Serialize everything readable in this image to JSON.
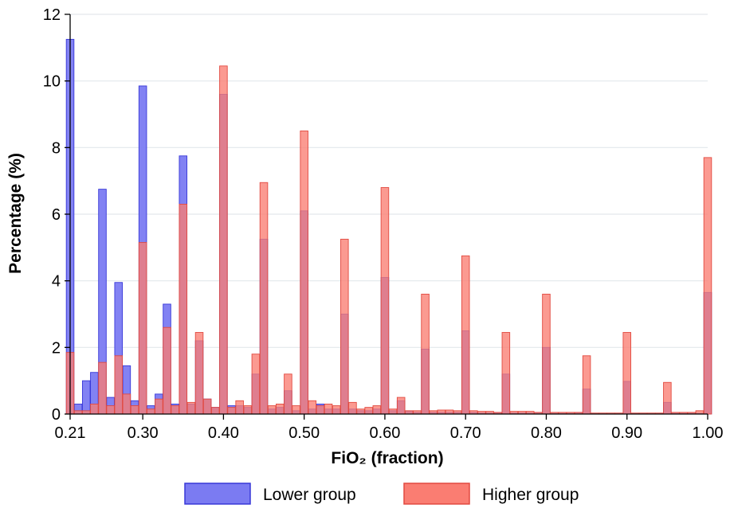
{
  "chart_data": {
    "type": "bar",
    "xlabel": "FiO₂ (fraction)",
    "ylabel": "Percentage (%)",
    "xlim": [
      0.21,
      1.0
    ],
    "ylim": [
      0,
      12
    ],
    "grid": true,
    "legend_position": "bottom",
    "x_ticks": [
      {
        "value": 0.21,
        "label": "0.21"
      },
      {
        "value": 0.3,
        "label": "0.30"
      },
      {
        "value": 0.4,
        "label": "0.40"
      },
      {
        "value": 0.5,
        "label": "0.50"
      },
      {
        "value": 0.6,
        "label": "0.60"
      },
      {
        "value": 0.7,
        "label": "0.70"
      },
      {
        "value": 0.8,
        "label": "0.80"
      },
      {
        "value": 0.9,
        "label": "0.90"
      },
      {
        "value": 1.0,
        "label": "1.00"
      }
    ],
    "y_ticks": [
      {
        "value": 0,
        "label": "0"
      },
      {
        "value": 2,
        "label": "2"
      },
      {
        "value": 4,
        "label": "4"
      },
      {
        "value": 6,
        "label": "6"
      },
      {
        "value": 8,
        "label": "8"
      },
      {
        "value": 10,
        "label": "10"
      },
      {
        "value": 12,
        "label": "12"
      }
    ],
    "x": [
      0.21,
      0.22,
      0.23,
      0.24,
      0.25,
      0.26,
      0.27,
      0.28,
      0.29,
      0.3,
      0.31,
      0.32,
      0.33,
      0.34,
      0.35,
      0.36,
      0.37,
      0.38,
      0.39,
      0.4,
      0.41,
      0.42,
      0.43,
      0.44,
      0.45,
      0.46,
      0.47,
      0.48,
      0.49,
      0.5,
      0.51,
      0.52,
      0.53,
      0.54,
      0.55,
      0.56,
      0.57,
      0.58,
      0.59,
      0.6,
      0.61,
      0.62,
      0.63,
      0.64,
      0.65,
      0.66,
      0.67,
      0.68,
      0.69,
      0.7,
      0.71,
      0.72,
      0.73,
      0.74,
      0.75,
      0.76,
      0.77,
      0.78,
      0.79,
      0.8,
      0.81,
      0.82,
      0.83,
      0.84,
      0.85,
      0.86,
      0.87,
      0.88,
      0.89,
      0.9,
      0.91,
      0.92,
      0.93,
      0.94,
      0.95,
      0.96,
      0.97,
      0.98,
      0.99,
      1.0
    ],
    "series": [
      {
        "name": "Lower group",
        "color": "#7b7bf2",
        "values": [
          11.25,
          0.3,
          1.0,
          1.25,
          6.75,
          0.5,
          3.95,
          1.45,
          0.4,
          9.85,
          0.25,
          0.6,
          3.3,
          0.3,
          7.75,
          0.3,
          2.2,
          0.45,
          0.2,
          9.6,
          0.25,
          0.25,
          0.2,
          1.2,
          5.25,
          0.15,
          0.2,
          0.7,
          0.1,
          6.1,
          0.15,
          0.3,
          0.15,
          0.15,
          3.0,
          0.15,
          0.1,
          0.1,
          0.15,
          4.1,
          0.1,
          0.4,
          0.08,
          0.05,
          1.95,
          0.05,
          0.05,
          0.05,
          0.05,
          2.5,
          0.05,
          0.03,
          0.03,
          0.03,
          1.2,
          0.03,
          0.03,
          0.03,
          0.03,
          2.0,
          0.02,
          0.02,
          0.02,
          0.03,
          0.75,
          0.02,
          0.02,
          0.02,
          0.02,
          0.98,
          0.02,
          0.02,
          0.02,
          0.02,
          0.35,
          0.02,
          0.02,
          0.02,
          0.02,
          3.65
        ]
      },
      {
        "name": "Higher group",
        "color": "#fa7d72",
        "values": [
          1.85,
          0.1,
          0.1,
          0.3,
          1.55,
          0.25,
          1.75,
          0.6,
          0.25,
          5.15,
          0.15,
          0.45,
          2.6,
          0.25,
          6.3,
          0.35,
          2.45,
          0.45,
          0.2,
          10.45,
          0.2,
          0.4,
          0.25,
          1.8,
          6.95,
          0.25,
          0.3,
          1.2,
          0.25,
          8.5,
          0.4,
          0.25,
          0.3,
          0.25,
          5.25,
          0.35,
          0.15,
          0.2,
          0.25,
          6.8,
          0.15,
          0.5,
          0.1,
          0.1,
          3.6,
          0.1,
          0.12,
          0.12,
          0.1,
          4.75,
          0.1,
          0.08,
          0.08,
          0.05,
          2.45,
          0.08,
          0.08,
          0.08,
          0.05,
          3.6,
          0.05,
          0.05,
          0.05,
          0.05,
          1.75,
          0.03,
          0.03,
          0.03,
          0.03,
          2.45,
          0.03,
          0.03,
          0.03,
          0.03,
          0.95,
          0.05,
          0.05,
          0.05,
          0.1,
          7.7
        ]
      }
    ]
  }
}
